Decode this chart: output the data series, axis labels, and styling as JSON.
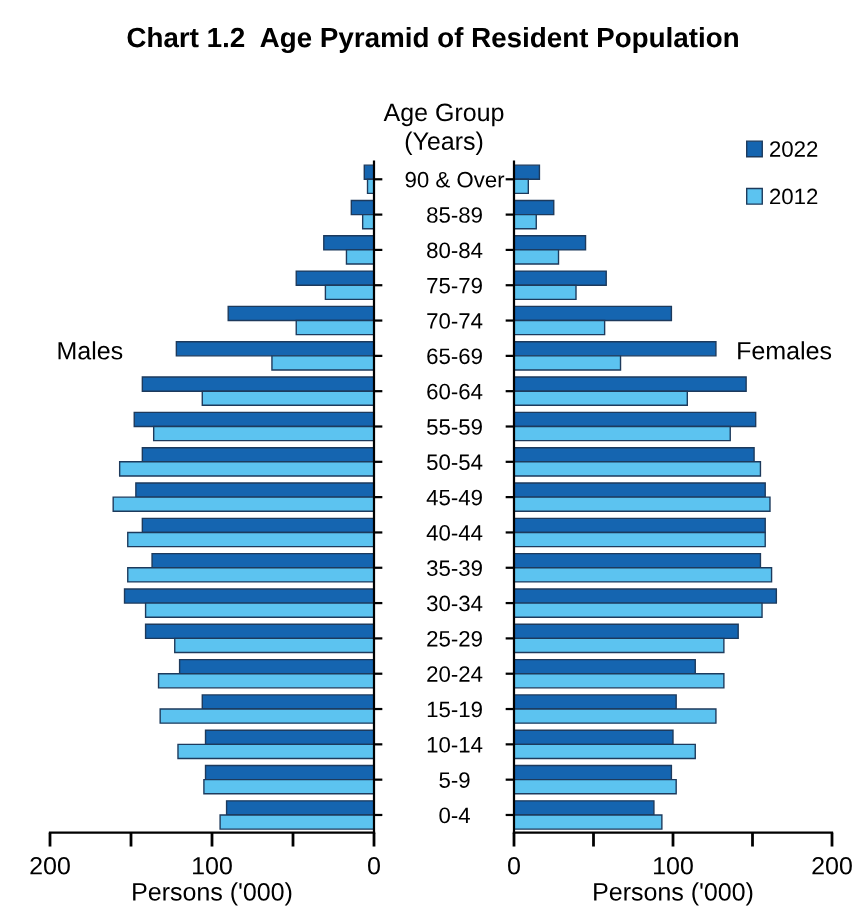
{
  "chart_data": [
    {
      "type": "bar",
      "orientation": "horizontal",
      "title": "Chart 1.2  Age Pyramid of Resident Population",
      "ylabel": "Age Group\n(Years)",
      "xlabel": "Persons ('000)",
      "annotations": [
        "Males"
      ],
      "categories": [
        "90 & Over",
        "85-89",
        "80-84",
        "75-79",
        "70-74",
        "65-69",
        "60-64",
        "55-59",
        "50-54",
        "45-49",
        "40-44",
        "35-39",
        "30-34",
        "25-29",
        "20-24",
        "15-19",
        "10-14",
        "5-9",
        "0-4"
      ],
      "xlim": [
        200,
        0
      ],
      "xticks": [
        200,
        100,
        0
      ],
      "series": [
        {
          "color": "#1565b0",
          "values": [
            6,
            14,
            31,
            48,
            90,
            122,
            143,
            148,
            143,
            147,
            143,
            137,
            154,
            141,
            120,
            106,
            104,
            104,
            91
          ]
        },
        {
          "color": "#5cc3f0",
          "values": [
            4,
            7,
            17,
            30,
            48,
            63,
            106,
            136,
            157,
            161,
            152,
            152,
            141,
            123,
            133,
            132,
            121,
            105,
            95
          ]
        }
      ]
    },
    {
      "type": "bar",
      "orientation": "horizontal",
      "xlabel": "Persons ('000)",
      "annotations": [
        "Females"
      ],
      "legend": "top right",
      "tick_labels": "x",
      "categories": [
        null,
        null,
        null,
        null,
        null,
        null,
        null,
        null,
        null,
        null,
        null,
        null,
        null,
        null,
        null,
        null,
        null,
        null,
        null
      ],
      "xlim": [
        0,
        200
      ],
      "xticks": [
        0,
        100,
        200
      ],
      "series": [
        {
          "name": "2022",
          "color": "#1565b0",
          "values": [
            16,
            25,
            45,
            58,
            99,
            127,
            146,
            152,
            151,
            158,
            158,
            155,
            165,
            141,
            114,
            102,
            100,
            99,
            88
          ]
        },
        {
          "name": "2012",
          "color": "#5cc3f0",
          "values": [
            9,
            14,
            28,
            39,
            57,
            67,
            109,
            136,
            155,
            161,
            158,
            162,
            156,
            132,
            132,
            127,
            114,
            102,
            93
          ]
        }
      ]
    }
  ]
}
